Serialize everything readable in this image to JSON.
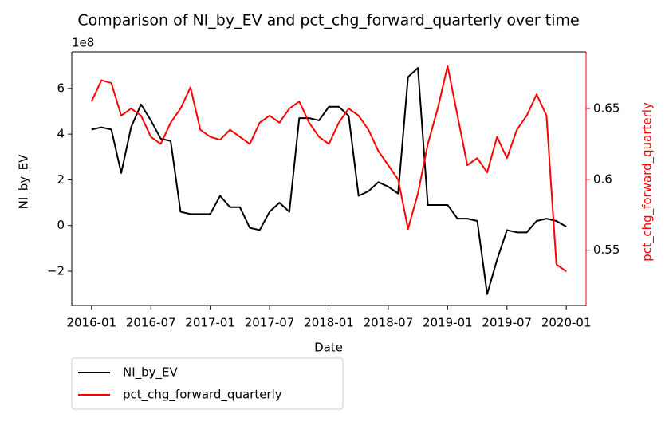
{
  "chart_data": {
    "type": "line",
    "title": "Comparison of NI_by_EV and pct_chg_forward_quarterly over time",
    "x_label": "Date",
    "y_label": "NI_by_EV",
    "y2_label": "pct_chg_forward_quarterly",
    "y_offset_label": "1e8",
    "x": [
      "2016-01",
      "2016-02",
      "2016-03",
      "2016-04",
      "2016-05",
      "2016-06",
      "2016-07",
      "2016-08",
      "2016-09",
      "2016-10",
      "2016-11",
      "2016-12",
      "2017-01",
      "2017-02",
      "2017-03",
      "2017-04",
      "2017-05",
      "2017-06",
      "2017-07",
      "2017-08",
      "2017-09",
      "2017-10",
      "2017-11",
      "2017-12",
      "2018-01",
      "2018-02",
      "2018-03",
      "2018-04",
      "2018-05",
      "2018-06",
      "2018-07",
      "2018-08",
      "2018-09",
      "2018-10",
      "2018-11",
      "2018-12",
      "2019-01",
      "2019-02",
      "2019-03",
      "2019-04",
      "2019-05",
      "2019-06",
      "2019-07",
      "2019-08",
      "2019-09",
      "2019-10",
      "2019-11",
      "2019-12",
      "2020-01"
    ],
    "xlim": [
      "2015-11",
      "2020-03"
    ],
    "xticks": [
      "2016-01",
      "2016-07",
      "2017-01",
      "2017-07",
      "2018-01",
      "2018-07",
      "2019-01",
      "2019-07",
      "2020-01"
    ],
    "ylim": [
      -350000000,
      760000000
    ],
    "yticks": [
      {
        "value": -200000000,
        "label": "−2"
      },
      {
        "value": 0,
        "label": "0"
      },
      {
        "value": 200000000,
        "label": "2"
      },
      {
        "value": 400000000,
        "label": "4"
      },
      {
        "value": 600000000,
        "label": "6"
      }
    ],
    "y2lim": [
      0.511,
      0.69
    ],
    "y2ticks": [
      0.55,
      0.6,
      0.65
    ],
    "legend": "below-left",
    "series": [
      {
        "name": "NI_by_EV",
        "color": "#000000",
        "axis": "y",
        "values": [
          420000000,
          430000000,
          420000000,
          230000000,
          430000000,
          530000000,
          460000000,
          380000000,
          370000000,
          60000000,
          50000000,
          50000000,
          50000000,
          130000000,
          80000000,
          80000000,
          -10000000,
          -20000000,
          60000000,
          100000000,
          60000000,
          470000000,
          470000000,
          460000000,
          520000000,
          520000000,
          480000000,
          130000000,
          150000000,
          190000000,
          170000000,
          140000000,
          650000000,
          690000000,
          90000000,
          90000000,
          90000000,
          30000000,
          30000000,
          20000000,
          -300000000,
          -150000000,
          -20000000,
          -30000000,
          -30000000,
          20000000,
          30000000,
          20000000,
          -5000000
        ]
      },
      {
        "name": "pct_chg_forward_quarterly",
        "color": "#ff0000",
        "axis": "y2",
        "values": [
          0.655,
          0.67,
          0.668,
          0.645,
          0.65,
          0.645,
          0.63,
          0.625,
          0.64,
          0.65,
          0.665,
          0.635,
          0.63,
          0.628,
          0.635,
          0.63,
          0.625,
          0.64,
          0.645,
          0.64,
          0.65,
          0.655,
          0.64,
          0.63,
          0.625,
          0.64,
          0.65,
          0.645,
          0.635,
          0.62,
          0.61,
          0.6,
          0.565,
          0.59,
          0.625,
          0.65,
          0.68,
          0.645,
          0.61,
          0.615,
          0.605,
          0.63,
          0.615,
          0.635,
          0.645,
          0.66,
          0.645,
          0.54,
          0.535
        ]
      }
    ]
  }
}
